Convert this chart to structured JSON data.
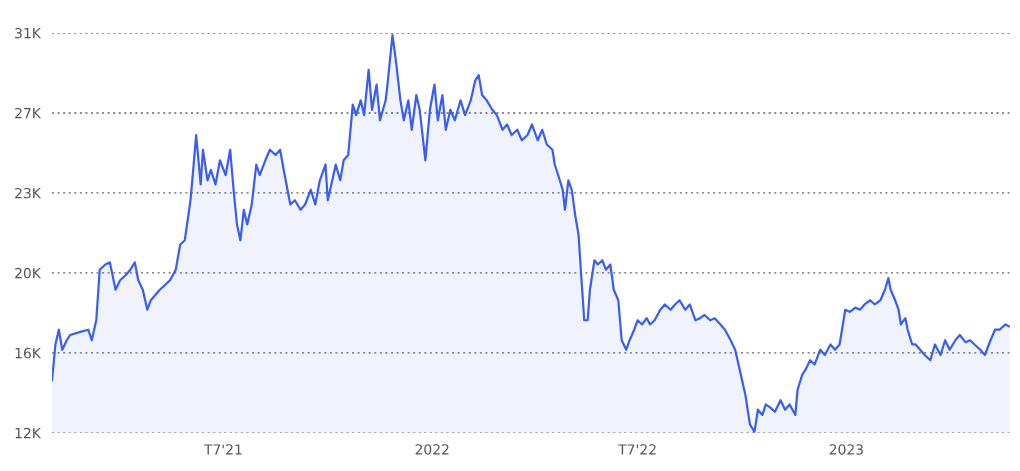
{
  "chart_data": {
    "type": "area",
    "color": "#3a5ff0",
    "x": [
      "2021-01-31",
      "2021-02-03",
      "2021-02-06",
      "2021-02-09",
      "2021-02-13",
      "2021-02-16",
      "2021-02-25",
      "2021-03-04",
      "2021-03-07",
      "2021-03-11",
      "2021-03-14",
      "2021-03-19",
      "2021-03-23",
      "2021-03-28",
      "2021-04-01",
      "2021-04-06",
      "2021-04-10",
      "2021-04-14",
      "2021-04-17",
      "2021-04-21",
      "2021-04-25",
      "2021-04-28",
      "2021-05-02",
      "2021-05-06",
      "2021-05-11",
      "2021-05-15",
      "2021-05-20",
      "2021-05-24",
      "2021-05-28",
      "2021-06-02",
      "2021-06-04",
      "2021-06-07",
      "2021-06-11",
      "2021-06-13",
      "2021-06-17",
      "2021-06-20",
      "2021-06-24",
      "2021-06-28",
      "2021-07-03",
      "2021-07-07",
      "2021-07-10",
      "2021-07-13",
      "2021-07-16",
      "2021-07-19",
      "2021-07-22",
      "2021-07-26",
      "2021-07-30",
      "2021-08-02",
      "2021-08-07",
      "2021-08-11",
      "2021-08-16",
      "2021-08-20",
      "2021-08-24",
      "2021-08-29",
      "2021-09-02",
      "2021-09-07",
      "2021-09-11",
      "2021-09-16",
      "2021-09-20",
      "2021-09-24",
      "2021-09-29",
      "2021-10-01",
      "2021-10-05",
      "2021-10-08",
      "2021-10-12",
      "2021-10-15",
      "2021-10-19",
      "2021-10-23",
      "2021-10-26",
      "2021-10-30",
      "2021-11-02",
      "2021-11-06",
      "2021-11-09",
      "2021-11-13",
      "2021-11-16",
      "2021-11-21",
      "2021-11-23",
      "2021-11-27",
      "2021-11-30",
      "2021-12-04",
      "2021-12-07",
      "2021-12-11",
      "2021-12-14",
      "2021-12-18",
      "2021-12-21",
      "2021-12-26",
      "2021-12-30",
      "2022-01-03",
      "2022-01-06",
      "2022-01-10",
      "2022-01-13",
      "2022-01-17",
      "2022-01-21",
      "2022-01-26",
      "2022-01-30",
      "2022-02-04",
      "2022-02-08",
      "2022-02-11",
      "2022-02-14",
      "2022-02-18",
      "2022-02-23",
      "2022-02-27",
      "2022-03-04",
      "2022-03-08",
      "2022-03-12",
      "2022-03-17",
      "2022-03-21",
      "2022-03-26",
      "2022-03-30",
      "2022-04-04",
      "2022-04-08",
      "2022-04-12",
      "2022-04-17",
      "2022-04-19",
      "2022-04-22",
      "2022-04-26",
      "2022-04-28",
      "2022-05-01",
      "2022-05-04",
      "2022-05-07",
      "2022-05-10",
      "2022-05-12",
      "2022-05-15",
      "2022-05-18",
      "2022-05-20",
      "2022-05-24",
      "2022-05-27",
      "2022-05-31",
      "2022-06-03",
      "2022-06-07",
      "2022-06-10",
      "2022-06-14",
      "2022-06-17",
      "2022-06-21",
      "2022-06-24",
      "2022-06-28",
      "2022-07-01",
      "2022-07-05",
      "2022-07-09",
      "2022-07-12",
      "2022-07-16",
      "2022-07-21",
      "2022-07-25",
      "2022-07-30",
      "2022-08-03",
      "2022-08-07",
      "2022-08-12",
      "2022-08-16",
      "2022-08-21",
      "2022-08-25",
      "2022-08-29",
      "2022-09-03",
      "2022-09-07",
      "2022-09-12",
      "2022-09-16",
      "2022-09-21",
      "2022-09-25",
      "2022-09-29",
      "2022-10-04",
      "2022-10-08",
      "2022-10-12",
      "2022-10-15",
      "2022-10-19",
      "2022-10-22",
      "2022-10-26",
      "2022-10-30",
      "2022-11-04",
      "2022-11-08",
      "2022-11-12",
      "2022-11-17",
      "2022-11-19",
      "2022-11-23",
      "2022-11-26",
      "2022-11-30",
      "2022-12-04",
      "2022-12-09",
      "2022-12-13",
      "2022-12-18",
      "2022-12-22",
      "2022-12-26",
      "2022-12-31",
      "2023-01-04",
      "2023-01-09",
      "2023-01-13",
      "2023-01-17",
      "2023-01-22",
      "2023-01-26",
      "2023-01-31",
      "2023-02-04",
      "2023-02-07",
      "2023-02-09",
      "2023-02-13",
      "2023-02-16",
      "2023-02-18",
      "2023-02-22",
      "2023-02-24",
      "2023-02-28",
      "2023-03-03",
      "2023-03-07",
      "2023-03-11",
      "2023-03-16",
      "2023-03-20",
      "2023-03-25",
      "2023-03-29",
      "2023-04-02",
      "2023-04-07",
      "2023-04-11",
      "2023-04-16",
      "2023-04-20",
      "2023-04-24",
      "2023-04-29",
      "2023-05-03",
      "2023-05-08",
      "2023-05-12",
      "2023-05-16",
      "2023-05-21",
      "2023-05-25"
    ],
    "values": [
      14500,
      16200,
      16900,
      15950,
      16400,
      16650,
      16800,
      16900,
      16400,
      17350,
      19750,
      20000,
      20100,
      18800,
      19250,
      19500,
      19750,
      20100,
      19250,
      18800,
      17850,
      18300,
      18550,
      18800,
      19050,
      19250,
      19750,
      20950,
      21150,
      23050,
      24250,
      26150,
      23800,
      25450,
      24000,
      24500,
      23800,
      24950,
      24250,
      25450,
      23550,
      21900,
      21150,
      22600,
      21900,
      22850,
      24750,
      24250,
      24950,
      25450,
      25200,
      25450,
      24250,
      22850,
      23050,
      22600,
      22850,
      23550,
      22850,
      24000,
      24750,
      23050,
      24000,
      24750,
      24000,
      24950,
      25200,
      27600,
      27100,
      27800,
      27100,
      29250,
      27350,
      28550,
      26850,
      27800,
      28750,
      30900,
      29700,
      27800,
      26850,
      27800,
      26400,
      28050,
      27350,
      24950,
      27350,
      28550,
      26850,
      28050,
      26400,
      27350,
      26850,
      27800,
      27100,
      27800,
      28750,
      29000,
      28050,
      27800,
      27350,
      27100,
      26400,
      26650,
      26150,
      26400,
      25900,
      26150,
      26650,
      25900,
      26400,
      25700,
      25450,
      24750,
      24250,
      23550,
      22600,
      24000,
      23550,
      22350,
      21400,
      19750,
      17350,
      17350,
      18800,
      20200,
      20000,
      20200,
      19750,
      20000,
      18800,
      18300,
      16400,
      15950,
      16400,
      16900,
      17350,
      17150,
      17450,
      17150,
      17350,
      17850,
      18100,
      17850,
      18100,
      18300,
      17850,
      18100,
      17350,
      17450,
      17600,
      17350,
      17450,
      17150,
      16900,
      16400,
      15950,
      15000,
      13800,
      12400,
      12050,
      13100,
      12850,
      13350,
      13200,
      13000,
      13550,
      13100,
      13350,
      12850,
      14050,
      14750,
      15000,
      15450,
      15250,
      15950,
      15700,
      16200,
      15950,
      16200,
      17850,
      17750,
      17950,
      17850,
      18100,
      18300,
      18100,
      18300,
      18800,
      19350,
      18800,
      18300,
      17850,
      17150,
      17450,
      16900,
      16200,
      16200,
      15950,
      15700,
      15450,
      16200,
      15700,
      16400,
      15950,
      16400,
      16650,
      16300,
      16400,
      16200,
      15950,
      15700,
      16400,
      16900,
      16900,
      17150,
      17050
    ],
    "xlim": [
      "2021-01-31",
      "2023-05-25"
    ],
    "xticks": [
      {
        "value": "2021-07-01",
        "label": "T7'21"
      },
      {
        "value": "2022-01-01",
        "label": "2022"
      },
      {
        "value": "2022-07-01",
        "label": "T7'22"
      },
      {
        "value": "2023-01-01",
        "label": "2023"
      }
    ],
    "ylim": [
      12000,
      31000
    ],
    "yticks": [
      {
        "value": 12000,
        "label": "12K"
      },
      {
        "value": 15800,
        "label": "16K"
      },
      {
        "value": 19600,
        "label": "20K"
      },
      {
        "value": 23400,
        "label": "23K"
      },
      {
        "value": 27200,
        "label": "27K"
      },
      {
        "value": 31000,
        "label": "31K"
      }
    ],
    "grid": "y",
    "legend": false
  }
}
